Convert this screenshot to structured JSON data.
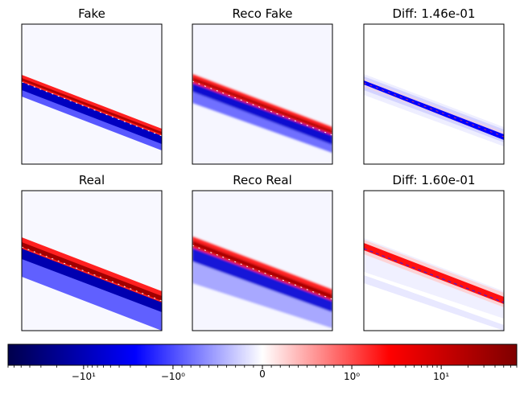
{
  "chart_data": {
    "type": "heatmap",
    "colormap": "seismic",
    "panels": [
      {
        "title": "Fake",
        "kind": "input",
        "band_lower": 0.5,
        "band_upper": 0.07
      },
      {
        "title": "Reco Fake",
        "kind": "reco",
        "band_lower": 0.15,
        "band_upper": 0.08
      },
      {
        "title": "Diff: 1.46e-01",
        "kind": "diff",
        "dominant": "negative"
      },
      {
        "title": "Real",
        "kind": "input",
        "band_lower": 0.6,
        "band_upper": 0.08
      },
      {
        "title": "Reco Real",
        "kind": "reco",
        "band_lower": 0.45,
        "band_upper": 0.08
      },
      {
        "title": "Diff: 1.60e-01",
        "kind": "diff",
        "dominant": "positive"
      }
    ],
    "colorbar": {
      "scale": "symlog",
      "range": [
        -70,
        70
      ],
      "ticks": [
        {
          "value": -10,
          "label": "−10¹"
        },
        {
          "value": -1,
          "label": "−10⁰"
        },
        {
          "value": 0,
          "label": "0"
        },
        {
          "value": 1,
          "label": "10⁰"
        },
        {
          "value": 10,
          "label": "10¹"
        }
      ]
    }
  }
}
